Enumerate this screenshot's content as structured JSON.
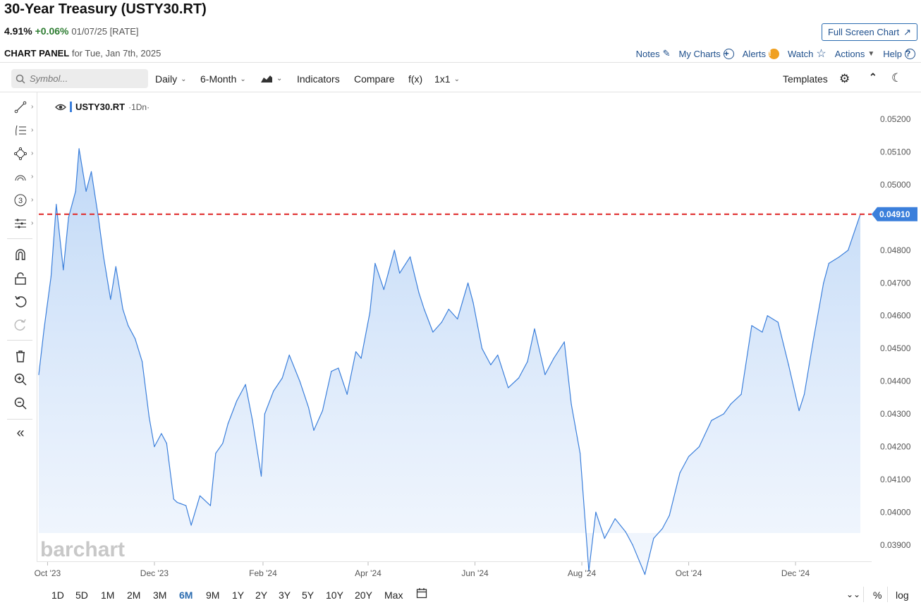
{
  "header": {
    "title": "30-Year Treasury (USTY30.RT)",
    "price": "4.91%",
    "change": "+0.06%",
    "meta": "01/07/25 [RATE]",
    "fullscreen_label": "Full Screen Chart"
  },
  "panel": {
    "label_bold": "CHART PANEL",
    "label_rest": "for Tue, Jan 7th, 2025",
    "links": {
      "notes": "Notes",
      "my_charts": "My Charts",
      "alerts": "Alerts",
      "watch": "Watch",
      "actions": "Actions",
      "help": "Help"
    }
  },
  "toolbar": {
    "search_placeholder": "Symbol...",
    "interval": "Daily",
    "period": "6-Month",
    "indicators": "Indicators",
    "compare": "Compare",
    "fx": "f(x)",
    "layout": "1x1",
    "templates": "Templates"
  },
  "legend": {
    "symbol": "USTY30.RT",
    "timeframe": "·1Dn·"
  },
  "watermark": "barchart",
  "current_value_label": "0.04910",
  "chart_data": {
    "type": "area",
    "symbol": "USTY30.RT",
    "ylim": [
      0.0385,
      0.0528
    ],
    "y_ticks": [
      "0.05200",
      "0.05100",
      "0.05000",
      "0.04800",
      "0.04700",
      "0.04600",
      "0.04500",
      "0.04400",
      "0.04300",
      "0.04200",
      "0.04100",
      "0.04000",
      "0.03900"
    ],
    "x_ticks": [
      "Oct '23",
      "Dec '23",
      "Feb '24",
      "Apr '24",
      "Jun '24",
      "Aug '24",
      "Oct '24",
      "Dec '24"
    ],
    "reference_line": 0.0491,
    "x": [
      "2023-09-26",
      "2023-09-29",
      "2023-10-03",
      "2023-10-06",
      "2023-10-10",
      "2023-10-13",
      "2023-10-17",
      "2023-10-19",
      "2023-10-23",
      "2023-10-26",
      "2023-10-30",
      "2023-11-02",
      "2023-11-06",
      "2023-11-09",
      "2023-11-13",
      "2023-11-16",
      "2023-11-20",
      "2023-11-24",
      "2023-11-28",
      "2023-12-01",
      "2023-12-05",
      "2023-12-08",
      "2023-12-12",
      "2023-12-14",
      "2023-12-19",
      "2023-12-22",
      "2023-12-27",
      "2024-01-02",
      "2024-01-05",
      "2024-01-09",
      "2024-01-12",
      "2024-01-17",
      "2024-01-22",
      "2024-01-26",
      "2024-01-31",
      "2024-02-02",
      "2024-02-07",
      "2024-02-12",
      "2024-02-16",
      "2024-02-22",
      "2024-02-27",
      "2024-03-01",
      "2024-03-06",
      "2024-03-11",
      "2024-03-15",
      "2024-03-20",
      "2024-03-25",
      "2024-03-28",
      "2024-04-02",
      "2024-04-05",
      "2024-04-10",
      "2024-04-16",
      "2024-04-19",
      "2024-04-25",
      "2024-04-30",
      "2024-05-03",
      "2024-05-08",
      "2024-05-13",
      "2024-05-17",
      "2024-05-22",
      "2024-05-28",
      "2024-05-31",
      "2024-06-05",
      "2024-06-10",
      "2024-06-14",
      "2024-06-20",
      "2024-06-26",
      "2024-07-01",
      "2024-07-05",
      "2024-07-11",
      "2024-07-16",
      "2024-07-22",
      "2024-07-26",
      "2024-07-31",
      "2024-08-05",
      "2024-08-09",
      "2024-08-14",
      "2024-08-20",
      "2024-08-26",
      "2024-08-30",
      "2024-09-06",
      "2024-09-11",
      "2024-09-16",
      "2024-09-20",
      "2024-09-26",
      "2024-10-01",
      "2024-10-07",
      "2024-10-14",
      "2024-10-21",
      "2024-10-25",
      "2024-10-31",
      "2024-11-06",
      "2024-11-12",
      "2024-11-15",
      "2024-11-21",
      "2024-11-27",
      "2024-12-03",
      "2024-12-06",
      "2024-12-11",
      "2024-12-17",
      "2024-12-20",
      "2024-12-26",
      "2024-12-31",
      "2025-01-07"
    ],
    "values": [
      0.0442,
      0.0456,
      0.0472,
      0.0494,
      0.0474,
      0.049,
      0.0498,
      0.0511,
      0.0498,
      0.0504,
      0.049,
      0.0478,
      0.0465,
      0.0475,
      0.0462,
      0.0457,
      0.0453,
      0.0446,
      0.0429,
      0.042,
      0.0424,
      0.0421,
      0.0404,
      0.0403,
      0.0402,
      0.0396,
      0.0405,
      0.0402,
      0.0418,
      0.0421,
      0.0427,
      0.0434,
      0.0439,
      0.0428,
      0.0411,
      0.043,
      0.0437,
      0.0441,
      0.0448,
      0.044,
      0.0432,
      0.0425,
      0.0431,
      0.0443,
      0.0444,
      0.0436,
      0.0449,
      0.0447,
      0.0461,
      0.0476,
      0.0468,
      0.048,
      0.0473,
      0.0478,
      0.0467,
      0.0462,
      0.0455,
      0.0458,
      0.0462,
      0.0459,
      0.047,
      0.0464,
      0.045,
      0.0445,
      0.0448,
      0.0438,
      0.0441,
      0.0446,
      0.0456,
      0.0442,
      0.0447,
      0.0452,
      0.0433,
      0.0418,
      0.0382,
      0.04,
      0.0392,
      0.0398,
      0.0394,
      0.039,
      0.0381,
      0.0392,
      0.0395,
      0.0399,
      0.0412,
      0.0417,
      0.042,
      0.0428,
      0.043,
      0.0433,
      0.0436,
      0.0457,
      0.0455,
      0.046,
      0.0458,
      0.0445,
      0.0431,
      0.0436,
      0.0452,
      0.047,
      0.0476,
      0.0478,
      0.048,
      0.0491
    ]
  },
  "bottom": {
    "ranges": [
      "1D",
      "5D",
      "1M",
      "2M",
      "3M",
      "6M",
      "9M",
      "1Y",
      "2Y",
      "3Y",
      "5Y",
      "10Y",
      "20Y",
      "Max"
    ],
    "active_range": "6M",
    "percent": "%",
    "log": "log"
  }
}
